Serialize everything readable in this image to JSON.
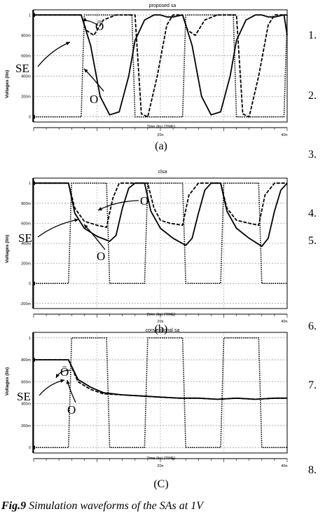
{
  "chart_data": [
    {
      "type": "line",
      "title": "proposed sa",
      "ylabel": "Voltages (lin)",
      "xlabel": "Time (lin) (TIME)",
      "panel_label": "(a)",
      "ylim": [
        -0.05,
        1.05
      ],
      "xlim": [
        0,
        40
      ],
      "y_ticks": [
        {
          "v": 1,
          "t": "1"
        },
        {
          "v": 0.8,
          "t": "800m"
        },
        {
          "v": 0.6,
          "t": "600m"
        },
        {
          "v": 0.4,
          "t": "400m"
        },
        {
          "v": 0.2,
          "t": "200m"
        },
        {
          "v": 0,
          "t": "0"
        }
      ],
      "x_ticks": [
        {
          "v": 20,
          "t": "20n"
        },
        {
          "v": 40,
          "t": "40n"
        }
      ],
      "series": [
        {
          "name": "SE",
          "style": "dotted",
          "x": [
            0,
            7.5,
            8.0,
            15.5,
            16.0,
            23.5,
            24.0,
            31.5,
            32.0,
            39.5,
            40.0
          ],
          "y": [
            0,
            0,
            1,
            1,
            0,
            0,
            1,
            1,
            0,
            0,
            1
          ]
        },
        {
          "name": "O",
          "style": "solid",
          "x": [
            0,
            7.5,
            9,
            10.5,
            12,
            13.5,
            15,
            16,
            17.5,
            19,
            20,
            21,
            22,
            23.5,
            25,
            26.5,
            28,
            29.5,
            31,
            32,
            33.5,
            35,
            36,
            37,
            38,
            39.5,
            40
          ],
          "y": [
            1,
            1,
            0.7,
            0.2,
            0.02,
            0.05,
            0.4,
            0.75,
            0.95,
            1,
            1,
            0.98,
            0.98,
            1,
            0.7,
            0.2,
            0.02,
            0.05,
            0.4,
            0.75,
            0.95,
            1,
            1,
            0.98,
            0.98,
            1,
            0.8
          ]
        },
        {
          "name": "Ō",
          "style": "dashed",
          "x": [
            0,
            7.5,
            8.3,
            9.5,
            11,
            13,
            15,
            16,
            17,
            18,
            19.5,
            21,
            22,
            23.5,
            24.3,
            25.5,
            27,
            29,
            31,
            32,
            33,
            34,
            35.5,
            37,
            38,
            39.5,
            40
          ],
          "y": [
            1,
            1,
            0.85,
            0.8,
            0.95,
            1,
            1,
            1,
            0.03,
            0.0,
            0.4,
            0.9,
            1,
            1,
            0.85,
            0.8,
            0.95,
            1,
            1,
            1,
            0.03,
            0.0,
            0.4,
            0.9,
            1,
            1,
            1
          ]
        }
      ],
      "annotations": [
        "Ō",
        "SE",
        "O"
      ]
    },
    {
      "type": "line",
      "title": "clsa",
      "ylabel": "Voltages (lin)",
      "xlabel": "Time (lin) (TIME)",
      "panel_label": "(b)",
      "ylim": [
        -0.25,
        1.05
      ],
      "xlim": [
        0,
        40
      ],
      "y_ticks": [
        {
          "v": 1,
          "t": "1"
        },
        {
          "v": 0.8,
          "t": "800m"
        },
        {
          "v": 0.6,
          "t": "600m"
        },
        {
          "v": 0.4,
          "t": "400m"
        },
        {
          "v": 0.2,
          "t": "200m"
        },
        {
          "v": 0,
          "t": "0"
        },
        {
          "v": -0.2,
          "t": "-200m"
        }
      ],
      "x_ticks": [
        {
          "v": 20,
          "t": "20n"
        },
        {
          "v": 40,
          "t": "40n"
        }
      ],
      "series": [
        {
          "name": "SE",
          "style": "dotted",
          "x": [
            0,
            5.5,
            6.0,
            11.5,
            12.0,
            17.5,
            18.0,
            23.5,
            24.0,
            29.5,
            30.0,
            35.5,
            36.0,
            40
          ],
          "y": [
            0,
            0,
            1,
            1,
            0,
            0,
            1,
            1,
            0,
            0,
            1,
            1,
            0,
            0
          ]
        },
        {
          "name": "O",
          "style": "solid",
          "x": [
            0,
            4,
            5.5,
            6.5,
            8,
            10,
            12,
            13,
            14,
            15,
            16,
            17.5,
            18.5,
            20,
            22,
            24,
            25,
            26,
            27,
            28,
            29.5,
            30.5,
            32,
            34,
            36,
            37,
            38,
            39,
            40
          ],
          "y": [
            1,
            1,
            1,
            0.7,
            0.55,
            0.47,
            0.42,
            0.48,
            0.75,
            0.95,
            1,
            1,
            0.72,
            0.55,
            0.45,
            0.38,
            0.45,
            0.7,
            0.93,
            1,
            1,
            0.72,
            0.55,
            0.45,
            0.37,
            0.45,
            0.72,
            0.93,
            1
          ]
        },
        {
          "name": "Ō",
          "style": "dashed",
          "x": [
            0,
            4,
            5.5,
            6.5,
            8,
            10,
            11.5,
            12.5,
            13.5,
            15,
            16.5,
            18,
            19,
            20,
            21.5,
            23.5,
            24.5,
            26,
            28,
            29.5,
            30.5,
            32,
            34,
            35.5,
            36.5,
            38,
            40
          ],
          "y": [
            1,
            1,
            1,
            0.75,
            0.62,
            0.58,
            0.56,
            0.85,
            1,
            1,
            1,
            1,
            0.75,
            0.63,
            0.6,
            0.58,
            0.88,
            1,
            1,
            1,
            0.75,
            0.63,
            0.6,
            0.58,
            0.88,
            1,
            1
          ]
        }
      ],
      "annotations": [
        "O",
        "SE",
        "O"
      ]
    },
    {
      "type": "line",
      "title": "conventional sa",
      "ylabel": "Voltages (lin)",
      "xlabel": "Time (lin) (TIME)",
      "panel_label": "(C)",
      "ylim": [
        -0.05,
        1.05
      ],
      "xlim": [
        0,
        40
      ],
      "y_ticks": [
        {
          "v": 1,
          "t": "1"
        },
        {
          "v": 0.8,
          "t": "800m"
        },
        {
          "v": 0.6,
          "t": "600m"
        },
        {
          "v": 0.4,
          "t": "400m"
        },
        {
          "v": 0.2,
          "t": "200m"
        },
        {
          "v": 0,
          "t": "0"
        }
      ],
      "x_ticks": [
        {
          "v": 20,
          "t": "20n"
        },
        {
          "v": 40,
          "t": "40n"
        }
      ],
      "series": [
        {
          "name": "SE",
          "style": "dotted",
          "x": [
            0,
            5.5,
            6.0,
            11.5,
            12.0,
            17.5,
            18.0,
            23.5,
            24.0,
            29.5,
            30.0,
            35.5,
            36.0,
            40
          ],
          "y": [
            0,
            0,
            1,
            1,
            0,
            0,
            1,
            1,
            0,
            0,
            1,
            1,
            0,
            0
          ]
        },
        {
          "name": "O",
          "style": "solid",
          "x": [
            0,
            4,
            5.5,
            7,
            9,
            11,
            14,
            17,
            20,
            23,
            26,
            29,
            32,
            35,
            38,
            40
          ],
          "y": [
            0.8,
            0.8,
            0.8,
            0.62,
            0.55,
            0.5,
            0.48,
            0.47,
            0.46,
            0.45,
            0.45,
            0.44,
            0.45,
            0.44,
            0.45,
            0.45
          ]
        },
        {
          "name": "Ō",
          "style": "dashed",
          "x": [
            0,
            4,
            5.5,
            7,
            9,
            11,
            14,
            17,
            20,
            23,
            26,
            29,
            32,
            35,
            38,
            40
          ],
          "y": [
            0.8,
            0.8,
            0.8,
            0.6,
            0.53,
            0.49,
            0.48,
            0.47,
            0.46,
            0.45,
            0.45,
            0.44,
            0.45,
            0.44,
            0.45,
            0.45
          ]
        }
      ],
      "annotations": [
        "Ō",
        "SE",
        "O"
      ]
    }
  ],
  "caption": {
    "label": "Fig.9",
    "text": "Simulation waveforms of the SAs at 1V"
  },
  "side_numbers": [
    "1.",
    "2.",
    "3.",
    "4.",
    "5.",
    "6.",
    "7.",
    "8."
  ]
}
